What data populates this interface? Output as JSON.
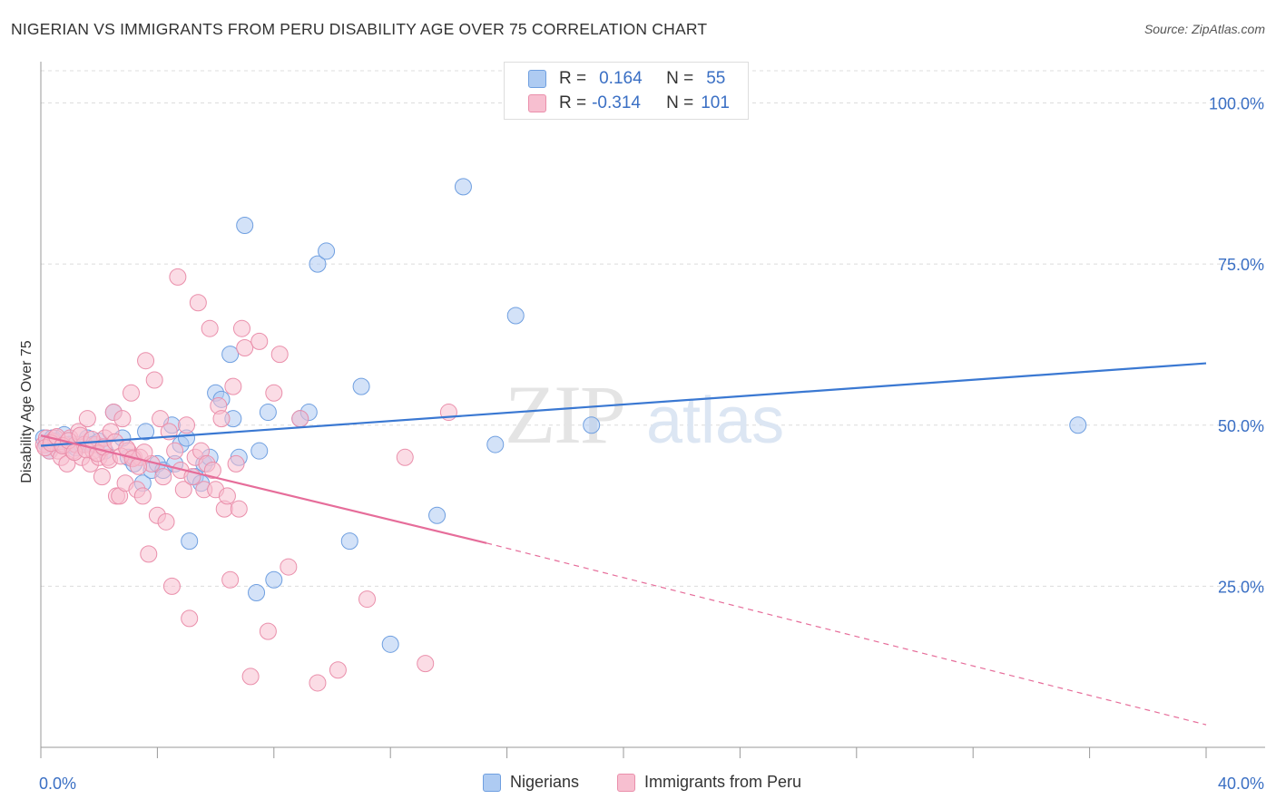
{
  "title": "NIGERIAN VS IMMIGRANTS FROM PERU DISABILITY AGE OVER 75 CORRELATION CHART",
  "source": "Source: ZipAtlas.com",
  "watermark": {
    "zip": "ZIP",
    "atlas": "atlas"
  },
  "legend": {
    "r_label": "R =",
    "n_label": "N =",
    "rows": [
      {
        "r": "0.164",
        "n": "55",
        "fill": "#aecbf2",
        "stroke": "#6f9fe0"
      },
      {
        "r": "-0.314",
        "n": "101",
        "fill": "#f7bfd0",
        "stroke": "#ea8fab"
      }
    ]
  },
  "bottom_legend": [
    "Nigerians",
    "Immigrants from Peru"
  ],
  "chart_data": {
    "type": "scatter",
    "title": "NIGERIAN VS IMMIGRANTS FROM PERU DISABILITY AGE OVER 75 CORRELATION CHART",
    "xlabel": "",
    "ylabel": "Disability Age Over 75",
    "xlim": [
      0,
      40
    ],
    "ylim": [
      0,
      105
    ],
    "x_ticks": [
      "0.0%",
      "40.0%"
    ],
    "y_ticks": [
      "25.0%",
      "50.0%",
      "75.0%",
      "100.0%"
    ],
    "y_tick_values": [
      25,
      50,
      75,
      100
    ],
    "grid": true,
    "colors": {
      "blue": "#3a78d2",
      "pink": "#e66d9a",
      "tick_label": "#3a6fc4"
    },
    "series": [
      {
        "name": "Nigerians",
        "color": "#3a78d2",
        "points": [
          [
            0.1,
            48
          ],
          [
            0.2,
            47
          ],
          [
            0.4,
            48
          ],
          [
            0.5,
            47.5
          ],
          [
            0.6,
            47
          ],
          [
            0.8,
            48.5
          ],
          [
            1.0,
            47
          ],
          [
            1.2,
            46.5
          ],
          [
            1.4,
            47
          ],
          [
            1.6,
            48
          ],
          [
            1.8,
            47
          ],
          [
            2.0,
            47.5
          ],
          [
            2.2,
            46
          ],
          [
            2.5,
            52
          ],
          [
            2.8,
            48
          ],
          [
            3.0,
            45
          ],
          [
            3.2,
            44
          ],
          [
            3.5,
            41
          ],
          [
            3.6,
            49
          ],
          [
            3.8,
            43
          ],
          [
            4.0,
            44
          ],
          [
            4.2,
            43
          ],
          [
            4.5,
            50
          ],
          [
            4.6,
            44
          ],
          [
            4.8,
            47
          ],
          [
            5.0,
            48
          ],
          [
            5.1,
            32
          ],
          [
            5.3,
            42
          ],
          [
            5.5,
            41
          ],
          [
            5.6,
            44
          ],
          [
            5.8,
            45
          ],
          [
            6.0,
            55
          ],
          [
            6.2,
            54
          ],
          [
            6.5,
            61
          ],
          [
            6.6,
            51
          ],
          [
            6.8,
            45
          ],
          [
            7.0,
            81
          ],
          [
            7.4,
            24
          ],
          [
            7.5,
            46
          ],
          [
            7.8,
            52
          ],
          [
            8.0,
            26
          ],
          [
            8.9,
            51
          ],
          [
            9.2,
            52
          ],
          [
            9.5,
            75
          ],
          [
            9.8,
            77
          ],
          [
            10.6,
            32
          ],
          [
            11.0,
            56
          ],
          [
            12.0,
            16
          ],
          [
            13.6,
            36
          ],
          [
            14.5,
            87
          ],
          [
            15.6,
            47
          ],
          [
            16.3,
            67
          ],
          [
            18.9,
            50
          ],
          [
            35.6,
            50
          ],
          [
            0.3,
            46
          ]
        ]
      },
      {
        "name": "Immigrants from Peru",
        "color": "#e66d9a",
        "points": [
          [
            0.1,
            47
          ],
          [
            0.2,
            48
          ],
          [
            0.3,
            46
          ],
          [
            0.4,
            47.5
          ],
          [
            0.5,
            48
          ],
          [
            0.6,
            46
          ],
          [
            0.7,
            45
          ],
          [
            0.8,
            47
          ],
          [
            0.9,
            44
          ],
          [
            1.0,
            48
          ],
          [
            1.1,
            46
          ],
          [
            1.2,
            47
          ],
          [
            1.3,
            49
          ],
          [
            1.4,
            45
          ],
          [
            1.5,
            47
          ],
          [
            1.6,
            51
          ],
          [
            1.7,
            44
          ],
          [
            1.8,
            46
          ],
          [
            1.9,
            47
          ],
          [
            2.0,
            45
          ],
          [
            2.1,
            42
          ],
          [
            2.2,
            48
          ],
          [
            2.3,
            45
          ],
          [
            2.4,
            49
          ],
          [
            2.5,
            52
          ],
          [
            2.6,
            39
          ],
          [
            2.7,
            39
          ],
          [
            2.8,
            51
          ],
          [
            2.9,
            41
          ],
          [
            3.0,
            46
          ],
          [
            3.1,
            55
          ],
          [
            3.2,
            45
          ],
          [
            3.3,
            40
          ],
          [
            3.4,
            45
          ],
          [
            3.5,
            39
          ],
          [
            3.6,
            60
          ],
          [
            3.7,
            30
          ],
          [
            3.8,
            44
          ],
          [
            3.9,
            57
          ],
          [
            4.0,
            36
          ],
          [
            4.1,
            51
          ],
          [
            4.2,
            42
          ],
          [
            4.3,
            35
          ],
          [
            4.4,
            49
          ],
          [
            4.5,
            25
          ],
          [
            4.6,
            46
          ],
          [
            4.7,
            73
          ],
          [
            4.8,
            43
          ],
          [
            4.9,
            40
          ],
          [
            5.0,
            50
          ],
          [
            5.1,
            20
          ],
          [
            5.2,
            42
          ],
          [
            5.3,
            45
          ],
          [
            5.4,
            69
          ],
          [
            5.5,
            46
          ],
          [
            5.6,
            40
          ],
          [
            5.7,
            44
          ],
          [
            5.8,
            65
          ],
          [
            5.9,
            43
          ],
          [
            6.0,
            40
          ],
          [
            6.1,
            53
          ],
          [
            6.2,
            51
          ],
          [
            6.3,
            37
          ],
          [
            6.4,
            39
          ],
          [
            6.5,
            26
          ],
          [
            6.6,
            56
          ],
          [
            6.7,
            44
          ],
          [
            6.8,
            37
          ],
          [
            6.9,
            65
          ],
          [
            7.0,
            62
          ],
          [
            7.2,
            11
          ],
          [
            7.5,
            63
          ],
          [
            7.8,
            18
          ],
          [
            8.0,
            55
          ],
          [
            8.2,
            61
          ],
          [
            8.5,
            28
          ],
          [
            8.9,
            51
          ],
          [
            9.5,
            10
          ],
          [
            10.2,
            12
          ],
          [
            11.2,
            23
          ],
          [
            12.5,
            45
          ],
          [
            13.2,
            13
          ],
          [
            14.0,
            52
          ],
          [
            0.15,
            46.5
          ],
          [
            0.35,
            47.2
          ],
          [
            0.55,
            48.2
          ],
          [
            0.75,
            46.8
          ],
          [
            0.95,
            47.6
          ],
          [
            1.15,
            45.8
          ],
          [
            1.35,
            48.4
          ],
          [
            1.55,
            46.2
          ],
          [
            1.75,
            47.8
          ],
          [
            1.95,
            45.6
          ],
          [
            2.15,
            46.6
          ],
          [
            2.35,
            44.6
          ],
          [
            2.55,
            47.4
          ],
          [
            2.75,
            45.2
          ],
          [
            2.95,
            46.4
          ],
          [
            3.15,
            44.8
          ],
          [
            3.35,
            43.6
          ],
          [
            3.55,
            45.8
          ]
        ]
      }
    ],
    "trend_lines": [
      {
        "series": "Nigerians",
        "x": [
          0,
          40
        ],
        "y": [
          46.8,
          59.6
        ],
        "style": "solid"
      },
      {
        "series": "Immigrants from Peru",
        "x": [
          0,
          15.3
        ],
        "y": [
          48.4,
          31.7
        ],
        "style": "solid"
      },
      {
        "series": "Immigrants from Peru",
        "x": [
          15.3,
          40
        ],
        "y": [
          31.7,
          3.5
        ],
        "style": "dashed"
      }
    ]
  }
}
